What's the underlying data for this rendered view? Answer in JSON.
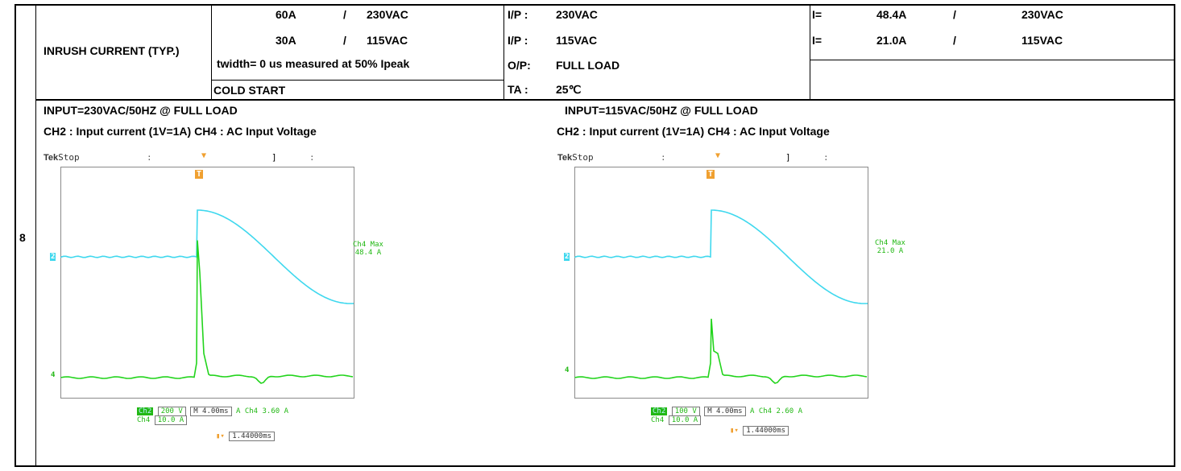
{
  "row": {
    "number": "8"
  },
  "spec": {
    "label": "INRUSH CURRENT (TYP.)",
    "line1": {
      "current": "60A",
      "sep": "/",
      "voltage": "230VAC"
    },
    "line2": {
      "current": "30A",
      "sep": "/",
      "voltage": "115VAC"
    },
    "note": "twidth= 0 us measured at 50% Ipeak",
    "start": "COLD START"
  },
  "conditions": [
    {
      "key": "I/P :",
      "value": "230VAC"
    },
    {
      "key": "I/P :",
      "value": "115VAC"
    },
    {
      "key": "O/P:",
      "value": "FULL  LOAD"
    },
    {
      "key": "TA :",
      "value": "25℃"
    }
  ],
  "results": [
    {
      "key": "I=",
      "current": "48.4A",
      "sep": "/",
      "voltage": "230VAC"
    },
    {
      "key": "I=",
      "current": "21.0A",
      "sep": "/",
      "voltage": "115VAC"
    }
  ],
  "scopes": [
    {
      "title": "INPUT=230VAC/50HZ @ FULL LOAD",
      "channels": "CH2 : Input current (1V=1A)  CH4 : AC Input Voltage",
      "brand": "Tek",
      "mode": "Stop",
      "trigger_marker": "T",
      "ch2_marker": "2",
      "ch4_marker": "4",
      "measurement_name": "Ch4 Max",
      "measurement_value": "48.4 A",
      "ch2_label": "Ch2",
      "ch2_scale": "200 V",
      "ch4_label": "Ch4",
      "ch4_scale": "10.0 A",
      "timebase": "M 4.00ms",
      "trigger_source": "A  Ch4",
      "trigger_level": "3.60 A",
      "trigger_position": "1.44000ms",
      "wave_colors": {
        "ch2": "#3fd8ee",
        "ch4": "#22d41c"
      },
      "spike_peak_fraction": 0.98
    },
    {
      "title": "INPUT=115VAC/50HZ @ FULL LOAD",
      "channels": "CH2 : Input current (1V=1A)  CH4 : AC Input Voltage",
      "brand": "Tek",
      "mode": "Stop",
      "trigger_marker": "T",
      "ch2_marker": "2",
      "ch4_marker": "4",
      "measurement_name": "Ch4 Max",
      "measurement_value": "21.0 A",
      "ch2_label": "Ch2",
      "ch2_scale": "100 V",
      "ch4_label": "Ch4",
      "ch4_scale": "10.0 A",
      "timebase": "M 4.00ms",
      "trigger_source": "A  Ch4",
      "trigger_level": "2.60 A",
      "trigger_position": "1.44000ms",
      "wave_colors": {
        "ch2": "#3fd8ee",
        "ch4": "#22d41c"
      },
      "spike_peak_fraction": 0.42
    }
  ]
}
